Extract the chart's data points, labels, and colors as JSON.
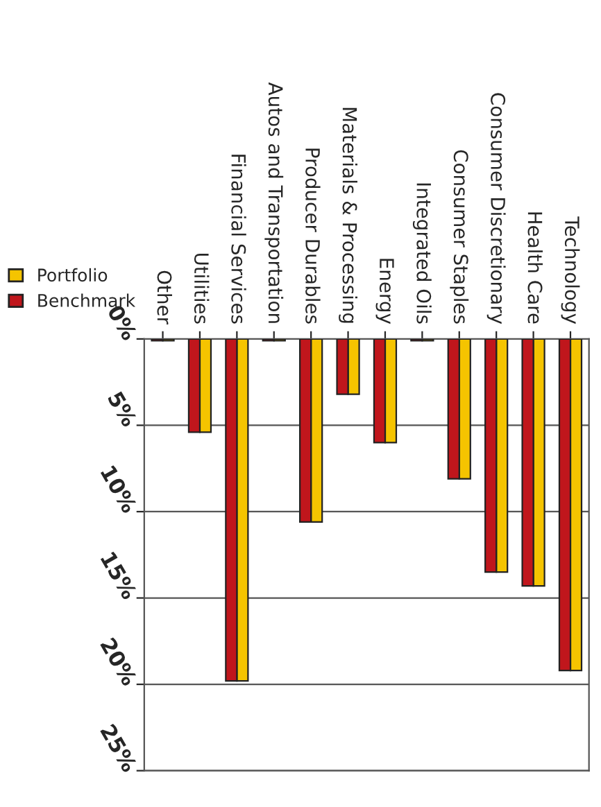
{
  "chart_data": {
    "type": "bar",
    "categories": [
      "Other",
      "Utilities",
      "Financial Services",
      "Autos and Transportation",
      "Producer Durables",
      "Materials & Processing",
      "Energy",
      "Integrated Oils",
      "Consumer Staples",
      "Consumer Discretionary",
      "Health Care",
      "Technology"
    ],
    "series": [
      {
        "name": "Portfolio",
        "color": "#f5c400",
        "values": [
          0.1,
          5.4,
          19.8,
          0.1,
          10.6,
          3.2,
          6.0,
          0.1,
          8.1,
          13.5,
          14.3,
          19.2
        ]
      },
      {
        "name": "Benchmark",
        "color": "#c0161c",
        "values": [
          0.1,
          5.4,
          19.8,
          0.1,
          10.6,
          3.2,
          6.0,
          0.1,
          8.1,
          13.5,
          14.3,
          19.2
        ]
      }
    ],
    "ylim": [
      25,
      0
    ],
    "yticks": [
      {
        "value": 0,
        "label": "0%"
      },
      {
        "value": 5,
        "label": "5%"
      },
      {
        "value": 10,
        "label": "10%"
      },
      {
        "value": 15,
        "label": "15%"
      },
      {
        "value": 20,
        "label": "20%"
      },
      {
        "value": 25,
        "label": "25%"
      }
    ],
    "grid": "y",
    "legend": "left"
  }
}
